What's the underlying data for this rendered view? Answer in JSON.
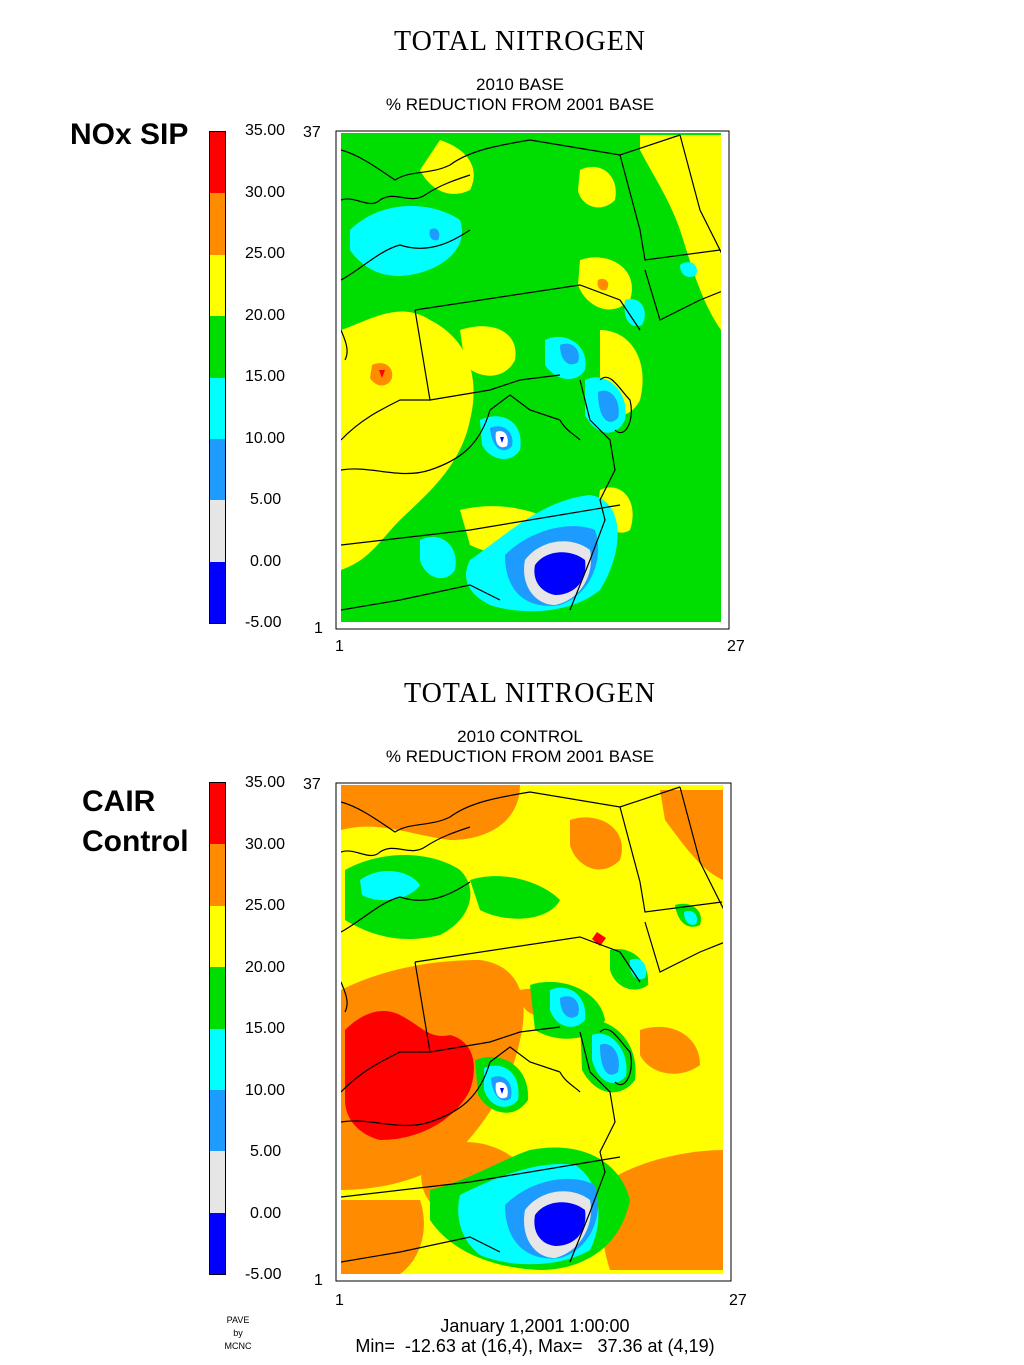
{
  "panels": [
    {
      "title": "TOTAL NITROGEN",
      "subtitle1": "2010 BASE",
      "subtitle2": "% REDUCTION FROM 2001 BASE",
      "side_label_lines": [
        "NOx SIP"
      ],
      "y_max_label": "37",
      "y_min_label": "1",
      "x_min_label": "1",
      "x_max_label": "27"
    },
    {
      "title": "TOTAL NITROGEN",
      "subtitle1": "2010 CONTROL",
      "subtitle2": "% REDUCTION FROM 2001 BASE",
      "side_label_lines": [
        "CAIR",
        "Control"
      ],
      "y_max_label": "37",
      "y_min_label": "1",
      "x_min_label": "1",
      "x_max_label": "27"
    }
  ],
  "colorbar": {
    "ticks": [
      "35.00",
      "30.00",
      "25.00",
      "20.00",
      "15.00",
      "10.00",
      "5.00",
      "0.00",
      "-5.00"
    ],
    "colors": [
      "#ff0000",
      "#ff8c00",
      "#ffff00",
      "#00dd00",
      "#00ffff",
      "#1e9bff",
      "#e6e6e6",
      "#0000ff"
    ]
  },
  "footer": {
    "date": "January 1,2001 1:00:00",
    "minmax": "Min=  -12.63 at (16,4), Max=   37.36 at (4,19)",
    "pave_lines": [
      "PAVE",
      "by",
      "MCNC"
    ]
  },
  "colors": {
    "red": "#ff0000",
    "orange": "#ff8c00",
    "yellow": "#ffff00",
    "green": "#00dd00",
    "cyan": "#00ffff",
    "lightblue": "#1e9bff",
    "gray": "#e6e6e6",
    "blue": "#0000ff",
    "outline": "#000000"
  }
}
